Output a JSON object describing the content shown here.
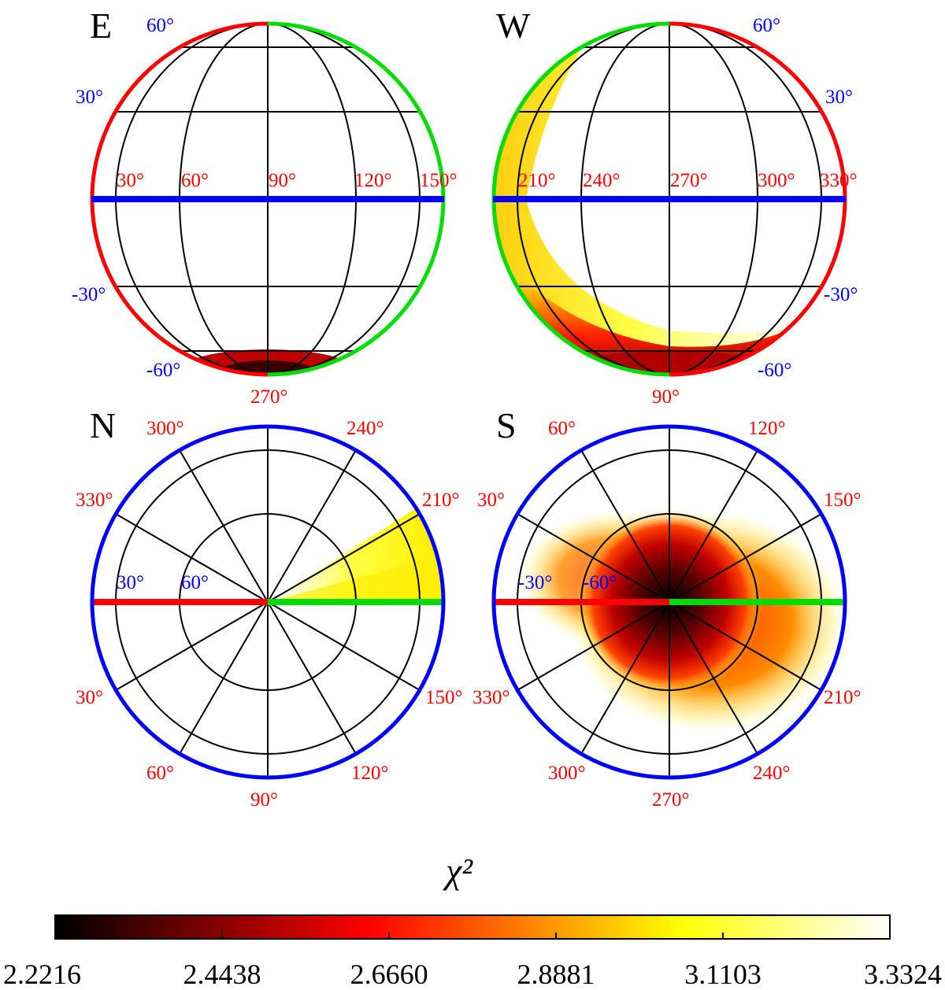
{
  "chart_data": {
    "type": "heatmap",
    "title": "",
    "colorbar": {
      "label": "χ²",
      "min": 2.2216,
      "max": 3.3324,
      "colormap": "hot",
      "ticks": [
        "2.2216",
        "2.4438",
        "2.6660",
        "2.8881",
        "3.1103",
        "3.3324"
      ]
    },
    "panels": [
      {
        "id": "E",
        "label": "E",
        "projection": "orthographic-equatorial",
        "latitude_labels": [
          "60°",
          "30°",
          "-30°",
          "-60°"
        ],
        "longitude_labels": [
          "30°",
          "60°",
          "90°",
          "120°",
          "150°"
        ],
        "bottom_label": "270°",
        "limb_colors": {
          "left": "#ff0000",
          "right": "#00dd00"
        },
        "equator_color": "#0000ff",
        "regions": [
          {
            "description_lon": "near 270°",
            "lat_range": [
              -90,
              -60
            ],
            "chi2_min": 2.45
          }
        ]
      },
      {
        "id": "W",
        "label": "W",
        "projection": "orthographic-equatorial",
        "latitude_labels": [
          "60°",
          "30°",
          "-30°",
          "-60°"
        ],
        "longitude_labels": [
          "210°",
          "240°",
          "270°",
          "300°",
          "330°"
        ],
        "bottom_label": "90°",
        "limb_colors": {
          "left": "#00dd00",
          "right": "#ff0000"
        },
        "equator_color": "#0000ff",
        "regions": [
          {
            "description_lon": "near 90°",
            "lat_range": [
              -90,
              -60
            ],
            "chi2_min": 2.5
          }
        ]
      },
      {
        "id": "N",
        "label": "N",
        "projection": "orthographic-polar-north",
        "latitude_labels": [
          "30°",
          "60°"
        ],
        "longitude_labels": [
          "300°",
          "240°",
          "330°",
          "210°",
          "30°",
          "150°",
          "60°",
          "120°",
          "90°"
        ],
        "limb_color": "#0000ff",
        "radius_colors": {
          "left": "#ff0000",
          "right": "#00dd00"
        },
        "regions": [
          {
            "description_lon": "near 180°",
            "lat_range": [
              0,
              60
            ],
            "chi2_min": 3.1
          }
        ]
      },
      {
        "id": "S",
        "label": "S",
        "projection": "orthographic-polar-south",
        "latitude_labels": [
          "-30°",
          "-60°"
        ],
        "longitude_labels": [
          "60°",
          "120°",
          "30°",
          "150°",
          "330°",
          "210°",
          "300°",
          "240°",
          "270°"
        ],
        "limb_color": "#0000ff",
        "radius_colors": {
          "left": "#ff0000",
          "right": "#00dd00"
        },
        "regions": [
          {
            "description_lon": "south pole",
            "lat_range": [
              -90,
              -60
            ],
            "chi2_min": 2.2216
          }
        ]
      }
    ]
  }
}
